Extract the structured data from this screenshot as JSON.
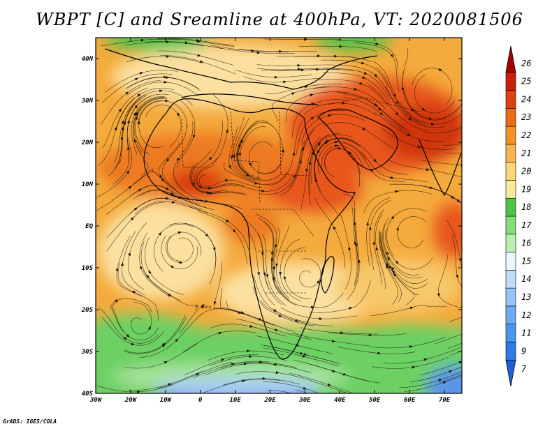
{
  "title": "WBPT [C] and Sreamline at 400hPa, VT: 2020081506",
  "credit": "GrADS: IGES/COLA",
  "map": {
    "lon_range": [
      -30,
      75
    ],
    "lat_range": [
      -40,
      45
    ],
    "lon_ticks": [
      {
        "value": -30,
        "label": "30W"
      },
      {
        "value": -20,
        "label": "20W"
      },
      {
        "value": -10,
        "label": "10W"
      },
      {
        "value": 0,
        "label": "0"
      },
      {
        "value": 10,
        "label": "10E"
      },
      {
        "value": 20,
        "label": "20E"
      },
      {
        "value": 30,
        "label": "30E"
      },
      {
        "value": 40,
        "label": "40E"
      },
      {
        "value": 50,
        "label": "50E"
      },
      {
        "value": 60,
        "label": "60E"
      },
      {
        "value": 70,
        "label": "70E"
      }
    ],
    "lat_ticks": [
      {
        "value": 40,
        "label": "40N"
      },
      {
        "value": 30,
        "label": "30N"
      },
      {
        "value": 20,
        "label": "20N"
      },
      {
        "value": 10,
        "label": "10N"
      },
      {
        "value": 0,
        "label": "EQ"
      },
      {
        "value": -10,
        "label": "10S"
      },
      {
        "value": -20,
        "label": "20S"
      },
      {
        "value": -30,
        "label": "30S"
      },
      {
        "value": -40,
        "label": "40S"
      }
    ]
  },
  "colorbar": {
    "levels": [
      "7",
      "9",
      "11",
      "12",
      "13",
      "14",
      "15",
      "16",
      "17",
      "18",
      "19",
      "20",
      "21",
      "22",
      "23",
      "24",
      "25",
      "26"
    ],
    "colors": [
      "#1e5fd6",
      "#2c7be6",
      "#4a94ee",
      "#6eaaf2",
      "#96c4f6",
      "#c0dcfa",
      "#e8f8fc",
      "#b9f0b0",
      "#86dc78",
      "#4cc448",
      "#fde99c",
      "#fcd77a",
      "#f8b450",
      "#f49224",
      "#ec6c14",
      "#e04010",
      "#c82008",
      "#a80000"
    ]
  },
  "field_colors": {
    "very_hot": "#c8280a",
    "hot": "#e8561a",
    "warm": "#f08c28",
    "mild": "#f4aa3c",
    "cool_orange": "#f7c86a",
    "pale": "#fbe4a0",
    "green_light": "#8edc80",
    "green": "#54c44c",
    "pale_green": "#c4f0b8",
    "blue": "#5c94e6",
    "light_blue": "#a8ccf6"
  }
}
